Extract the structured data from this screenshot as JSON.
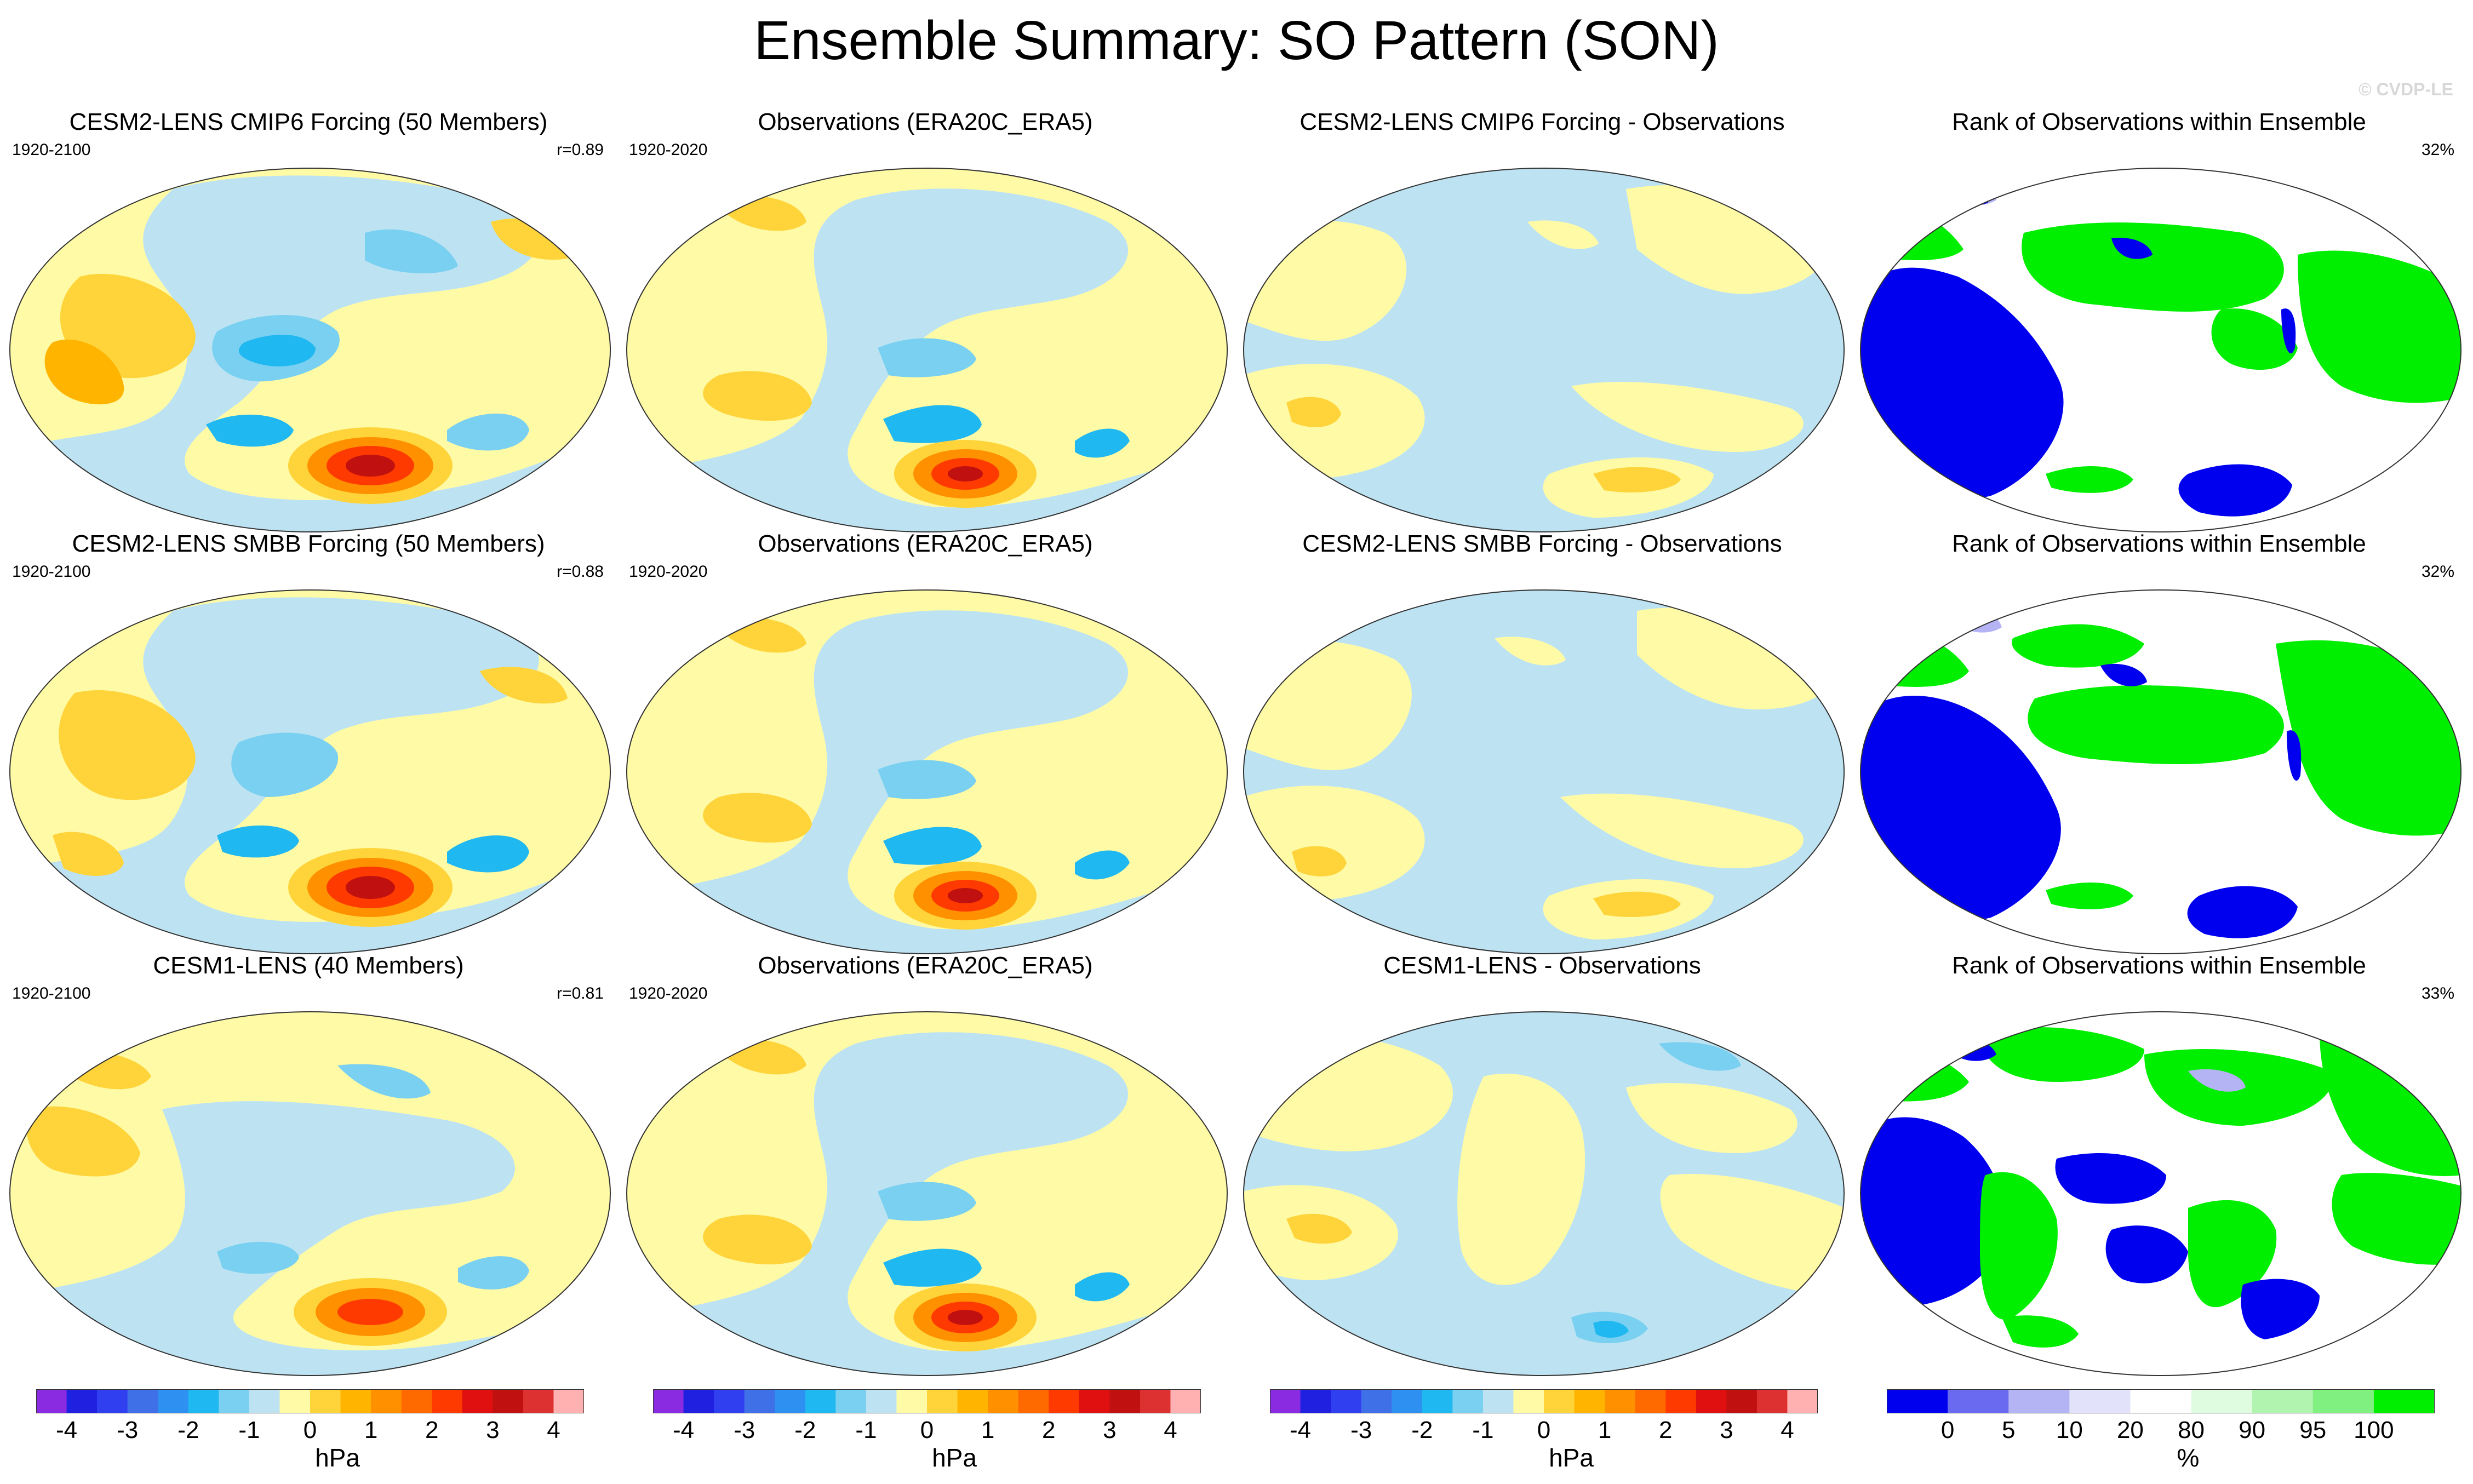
{
  "title": "Ensemble Summary: SO Pattern (SON)",
  "credit": "© CVDP-LE",
  "panels": [
    {
      "title": "CESM2-LENS CMIP6 Forcing (50 Members)",
      "years": "1920-2100",
      "stat": "r=0.89"
    },
    {
      "title": "Observations (ERA20C_ERA5)",
      "years": "1920-2020",
      "stat": ""
    },
    {
      "title": "CESM2-LENS CMIP6 Forcing - Observations",
      "years": "",
      "stat": ""
    },
    {
      "title": "Rank of Observations within Ensemble",
      "years": "",
      "stat": "32%"
    },
    {
      "title": "CESM2-LENS SMBB Forcing (50 Members)",
      "years": "1920-2100",
      "stat": "r=0.88"
    },
    {
      "title": "Observations (ERA20C_ERA5)",
      "years": "1920-2020",
      "stat": ""
    },
    {
      "title": "CESM2-LENS SMBB Forcing - Observations",
      "years": "",
      "stat": ""
    },
    {
      "title": "Rank of Observations within Ensemble",
      "years": "",
      "stat": "32%"
    },
    {
      "title": "CESM1-LENS (40 Members)",
      "years": "1920-2100",
      "stat": "r=0.81"
    },
    {
      "title": "Observations (ERA20C_ERA5)",
      "years": "1920-2020",
      "stat": ""
    },
    {
      "title": "CESM1-LENS - Observations",
      "years": "",
      "stat": ""
    },
    {
      "title": "Rank of Observations within Ensemble",
      "years": "",
      "stat": "33%"
    }
  ],
  "colorbars": [
    {
      "unit": "hPa",
      "ticks": [
        "-4",
        "-3",
        "-2",
        "-1",
        "0",
        "1",
        "2",
        "3",
        "4"
      ],
      "colors": [
        "#8a2be2",
        "#2020e0",
        "#3040f0",
        "#4070e8",
        "#2e90f0",
        "#20b8f0",
        "#7ad0f0",
        "#bde3f3",
        "#fffaa6",
        "#ffd43a",
        "#ffb400",
        "#ff9000",
        "#ff6a00",
        "#ff3a00",
        "#e01010",
        "#c01010",
        "#dd3030",
        "#ffb0b0"
      ]
    },
    {
      "unit": "hPa",
      "ticks": [
        "-4",
        "-3",
        "-2",
        "-1",
        "0",
        "1",
        "2",
        "3",
        "4"
      ],
      "colors": [
        "#8a2be2",
        "#2020e0",
        "#3040f0",
        "#4070e8",
        "#2e90f0",
        "#20b8f0",
        "#7ad0f0",
        "#bde3f3",
        "#fffaa6",
        "#ffd43a",
        "#ffb400",
        "#ff9000",
        "#ff6a00",
        "#ff3a00",
        "#e01010",
        "#c01010",
        "#dd3030",
        "#ffb0b0"
      ]
    },
    {
      "unit": "hPa",
      "ticks": [
        "-4",
        "-3",
        "-2",
        "-1",
        "0",
        "1",
        "2",
        "3",
        "4"
      ],
      "colors": [
        "#8a2be2",
        "#2020e0",
        "#3040f0",
        "#4070e8",
        "#2e90f0",
        "#20b8f0",
        "#7ad0f0",
        "#bde3f3",
        "#fffaa6",
        "#ffd43a",
        "#ffb400",
        "#ff9000",
        "#ff6a00",
        "#ff3a00",
        "#e01010",
        "#c01010",
        "#dd3030",
        "#ffb0b0"
      ]
    },
    {
      "unit": "%",
      "ticks": [
        "0",
        "5",
        "10",
        "20",
        "80",
        "90",
        "95",
        "100"
      ],
      "colors": [
        "#0000ee",
        "#6a6af0",
        "#b4b4f4",
        "#e2e2fa",
        "#ffffff",
        "#e0fce0",
        "#b0f4b0",
        "#80f080",
        "#00ee00"
      ]
    }
  ],
  "colors": {
    "neg_light": "#bde3f3",
    "neg_mid": "#7ad0f0",
    "neg_dark": "#20b8f0",
    "pos_light": "#fffaa6",
    "pos_mid": "#ffd43a",
    "pos_dark": "#ffb400",
    "rank_low": "#0000ee",
    "rank_high": "#00ee00"
  }
}
